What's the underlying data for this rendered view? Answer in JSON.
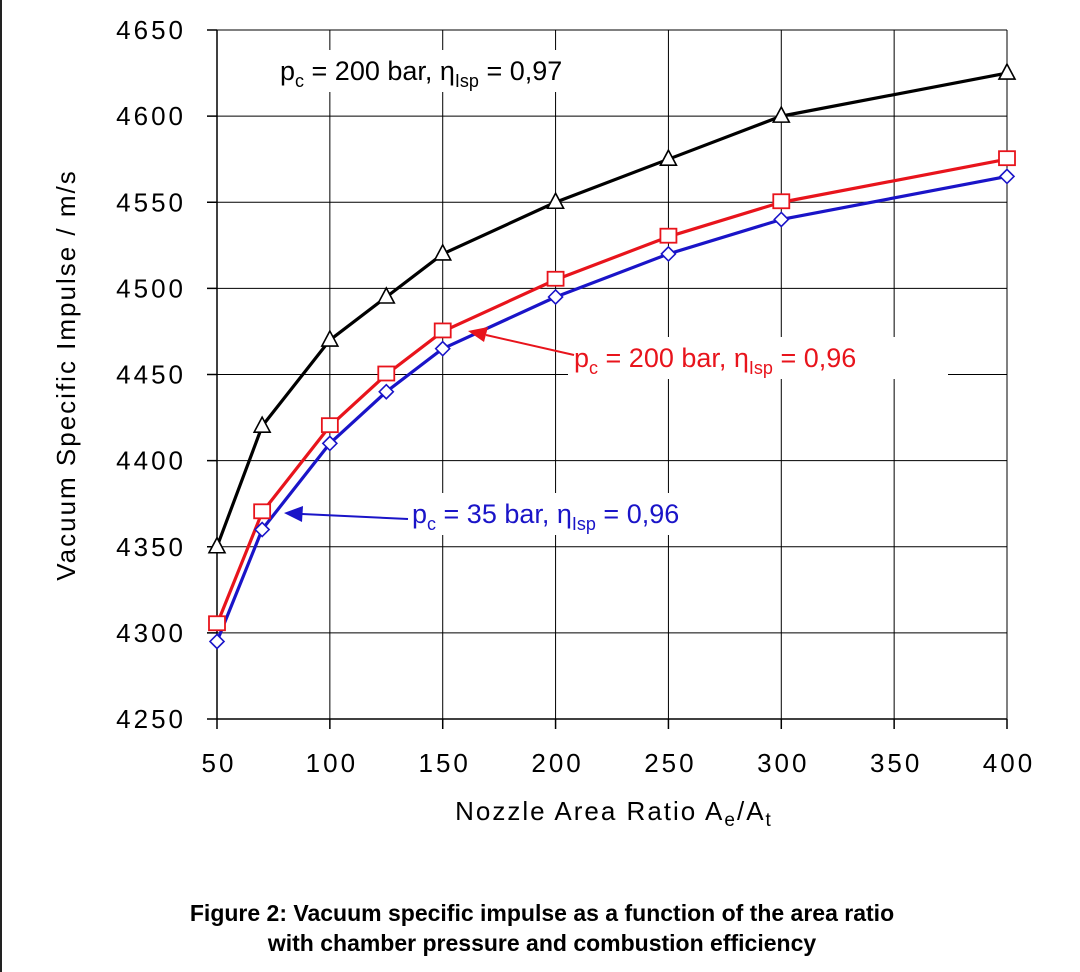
{
  "chart_data": {
    "type": "line",
    "xlabel": "Nozzle Area Ratio A",
    "xlabel_sub1": "e",
    "xlabel_mid": "/A",
    "xlabel_sub2": "t",
    "ylabel": "Vacuum Specific Impulse / m/s",
    "xlim": [
      50,
      400
    ],
    "ylim": [
      4250,
      4650
    ],
    "x_ticks": [
      50,
      100,
      150,
      200,
      250,
      300,
      350,
      400
    ],
    "y_ticks": [
      4250,
      4300,
      4350,
      4400,
      4450,
      4500,
      4550,
      4600,
      4650
    ],
    "grid": true,
    "series": [
      {
        "name": "p_c = 200 bar, η_Isp = 0,97",
        "label_parts": [
          "p",
          "c",
          " = 200 bar, ",
          "η",
          "Isp",
          " = 0,97"
        ],
        "color": "#000000",
        "marker": "triangle",
        "x": [
          50,
          70,
          100,
          125,
          150,
          200,
          250,
          300,
          400
        ],
        "y": [
          4350,
          4420,
          4470,
          4495,
          4520,
          4550,
          4575,
          4600,
          4625
        ]
      },
      {
        "name": "p_c = 200 bar, η_Isp = 0,96",
        "label_parts": [
          "p",
          "c",
          " = 200 bar, ",
          "η",
          "Isp",
          " = 0,96"
        ],
        "color": "#e8141c",
        "marker": "square",
        "x": [
          50,
          70,
          100,
          125,
          150,
          200,
          250,
          300,
          400
        ],
        "y": [
          4305,
          4370,
          4420,
          4450,
          4475,
          4505,
          4530,
          4550,
          4575
        ]
      },
      {
        "name": "p_c = 35 bar, η_Isp = 0,96",
        "label_parts": [
          "p",
          "c",
          " = 35 bar, ",
          "η",
          "Isp",
          " = 0,96"
        ],
        "color": "#1a14c8",
        "marker": "diamond",
        "x": [
          50,
          70,
          100,
          125,
          150,
          200,
          250,
          300,
          400
        ],
        "y": [
          4295,
          4360,
          4410,
          4440,
          4465,
          4495,
          4520,
          4540,
          4565
        ]
      }
    ]
  },
  "caption": {
    "line1": "Figure 2: Vacuum specific impulse as a function of the area ratio",
    "line2": "with chamber pressure and combustion efficiency"
  }
}
